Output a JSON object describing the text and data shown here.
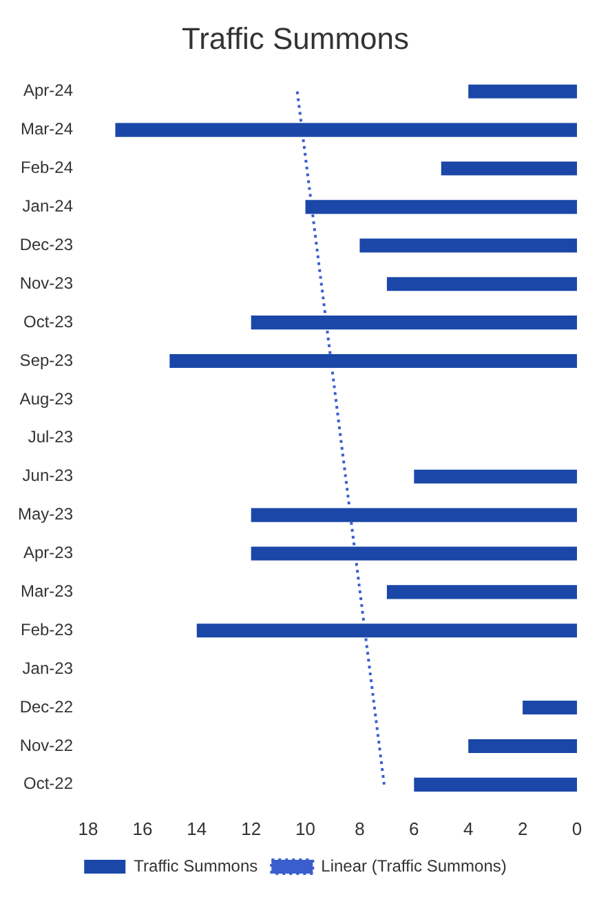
{
  "chart_data": {
    "type": "bar",
    "orientation": "horizontal",
    "title": "Traffic Summons",
    "categories": [
      "Apr-24",
      "Mar-24",
      "Feb-24",
      "Jan-24",
      "Dec-23",
      "Nov-23",
      "Oct-23",
      "Sep-23",
      "Aug-23",
      "Jul-23",
      "Jun-23",
      "May-23",
      "Apr-23",
      "Mar-23",
      "Feb-23",
      "Jan-23",
      "Dec-22",
      "Nov-22",
      "Oct-22"
    ],
    "series": [
      {
        "name": "Traffic Summons",
        "color": "#1a47a8",
        "values": [
          4,
          17,
          5,
          10,
          8,
          7,
          12,
          15,
          0,
          0,
          6,
          12,
          12,
          7,
          14,
          0,
          2,
          4,
          6
        ]
      },
      {
        "name": "Linear (Traffic Summons)",
        "type": "line",
        "color": "#3a5fcd",
        "line_style": "dotted",
        "marker": "none",
        "x": [
          "Oct-22",
          "Apr-24"
        ],
        "values": [
          7.1,
          10.3
        ]
      }
    ],
    "xlim": [
      18,
      0
    ],
    "xticks": [
      18,
      16,
      14,
      12,
      10,
      8,
      6,
      4,
      2,
      0
    ],
    "grid": false,
    "legend": "bottom"
  }
}
